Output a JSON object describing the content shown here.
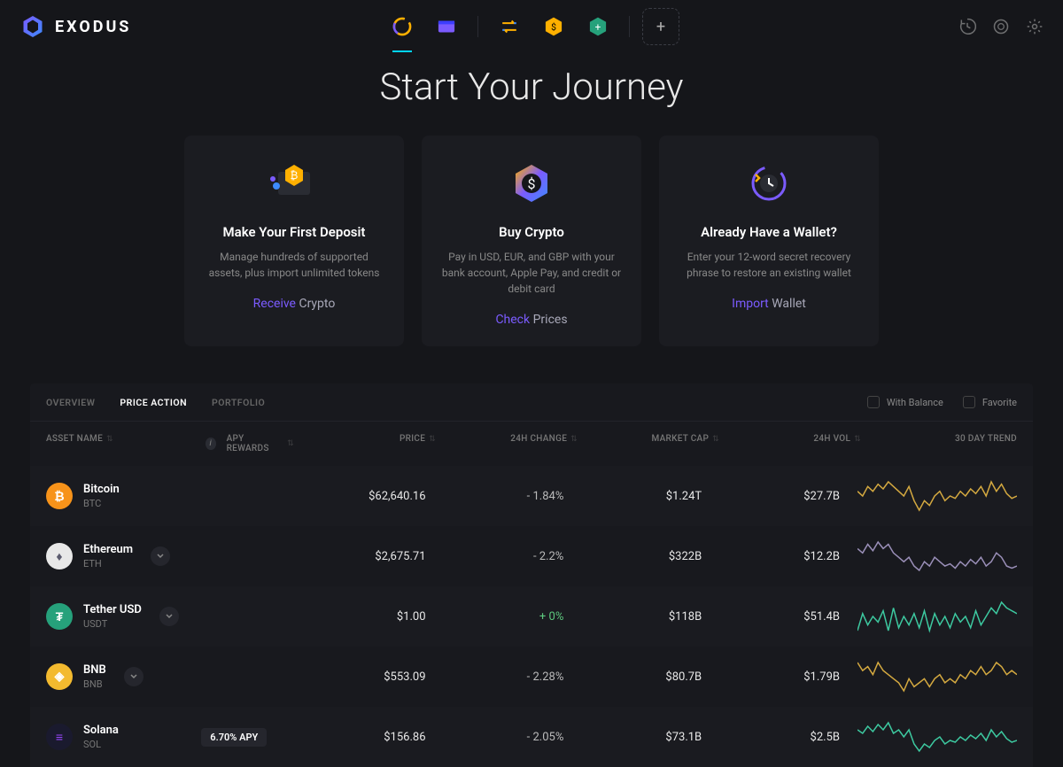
{
  "brand": "EXODUS",
  "hero": {
    "title": "Start Your Journey"
  },
  "cards": [
    {
      "title": "Make Your First Deposit",
      "desc": "Manage hundreds of supported assets, plus import unlimited tokens",
      "link1": "Receive",
      "link2": "Crypto"
    },
    {
      "title": "Buy Crypto",
      "desc": "Pay in USD, EUR, and GBP with your bank account, Apple Pay, and credit or debit card",
      "link1": "Check",
      "link2": "Prices"
    },
    {
      "title": "Already Have a Wallet?",
      "desc": "Enter your 12-word secret recovery phrase to restore an existing wallet",
      "link1": "Import",
      "link2": "Wallet"
    }
  ],
  "tabs": {
    "items": [
      "OVERVIEW",
      "PRICE ACTION",
      "PORTFOLIO"
    ],
    "filters": {
      "with_balance": "With Balance",
      "favorite": "Favorite"
    }
  },
  "columns": {
    "asset": "ASSET NAME",
    "apy": "APY REWARDS",
    "price": "PRICE",
    "change": "24H CHANGE",
    "mcap": "MARKET CAP",
    "vol": "24H VOL",
    "trend": "30 DAY TREND"
  },
  "assets": [
    {
      "name": "Bitcoin",
      "symbol": "BTC",
      "price": "$62,640.16",
      "change": "- 1.84%",
      "change_positive": false,
      "mcap": "$1.24T",
      "vol": "$27.7B",
      "icon_bg": "#f7931a",
      "icon_fg": "#ffffff",
      "glyph": "₿",
      "expandable": false,
      "apy": "",
      "spark_color": "#d4a940",
      "spark": [
        22,
        20,
        24,
        22,
        25,
        23,
        26,
        24,
        22,
        20,
        24,
        18,
        14,
        18,
        16,
        20,
        22,
        18,
        20,
        19,
        22,
        20,
        23,
        21,
        24,
        20,
        26,
        22,
        25,
        21,
        19,
        20
      ]
    },
    {
      "name": "Ethereum",
      "symbol": "ETH",
      "price": "$2,675.71",
      "change": "- 2.2%",
      "change_positive": false,
      "mcap": "$322B",
      "vol": "$12.2B",
      "icon_bg": "#e8e8e8",
      "icon_fg": "#5b5b6e",
      "glyph": "♦",
      "expandable": true,
      "apy": "",
      "spark_color": "#9a8fb8",
      "spark": [
        26,
        24,
        28,
        25,
        29,
        26,
        28,
        24,
        22,
        20,
        22,
        18,
        16,
        20,
        18,
        22,
        20,
        18,
        19,
        17,
        20,
        18,
        21,
        19,
        22,
        18,
        20,
        24,
        22,
        18,
        17,
        18
      ]
    },
    {
      "name": "Tether USD",
      "symbol": "USDT",
      "price": "$1.00",
      "change": "+ 0%",
      "change_positive": true,
      "mcap": "$118B",
      "vol": "$51.4B",
      "icon_bg": "#26a17b",
      "icon_fg": "#ffffff",
      "glyph": "₮",
      "expandable": true,
      "apy": "",
      "spark_color": "#3dc9a0",
      "spark": [
        10,
        22,
        14,
        20,
        16,
        24,
        10,
        26,
        12,
        20,
        14,
        22,
        12,
        24,
        10,
        22,
        14,
        20,
        12,
        22,
        16,
        20,
        12,
        24,
        14,
        20,
        26,
        22,
        30,
        26,
        24,
        22
      ]
    },
    {
      "name": "BNB",
      "symbol": "BNB",
      "price": "$553.09",
      "change": "- 2.28%",
      "change_positive": false,
      "mcap": "$80.7B",
      "vol": "$1.79B",
      "icon_bg": "#f3ba2f",
      "icon_fg": "#ffffff",
      "glyph": "◈",
      "expandable": true,
      "apy": "",
      "spark_color": "#d4a940",
      "spark": [
        28,
        24,
        26,
        22,
        28,
        24,
        22,
        20,
        18,
        14,
        20,
        16,
        18,
        20,
        16,
        20,
        22,
        18,
        20,
        18,
        22,
        20,
        24,
        22,
        26,
        22,
        24,
        28,
        26,
        22,
        24,
        22
      ]
    },
    {
      "name": "Solana",
      "symbol": "SOL",
      "price": "$156.86",
      "change": "- 2.05%",
      "change_positive": false,
      "mcap": "$73.1B",
      "vol": "$2.5B",
      "icon_bg": "#1a1a2e",
      "icon_fg": "#9945ff",
      "glyph": "≡",
      "expandable": false,
      "apy": "6.70% APY",
      "spark_color": "#3dc9a0",
      "spark": [
        26,
        24,
        28,
        25,
        29,
        26,
        30,
        24,
        26,
        22,
        26,
        18,
        14,
        18,
        16,
        20,
        22,
        18,
        20,
        19,
        22,
        20,
        23,
        21,
        24,
        20,
        26,
        22,
        25,
        21,
        19,
        20
      ]
    }
  ]
}
